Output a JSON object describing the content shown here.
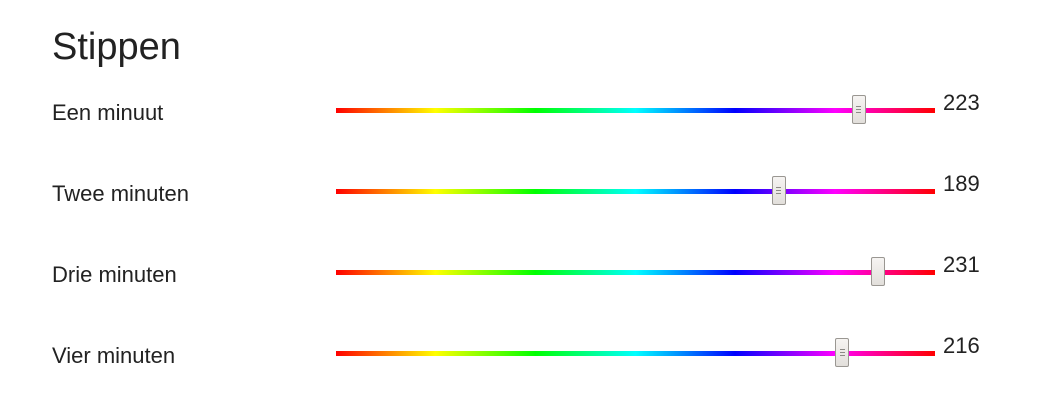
{
  "page": {
    "title": "Stippen"
  },
  "sliders": [
    {
      "label": "Een minuut",
      "value": 223,
      "min": 0,
      "max": 255,
      "thumb_style": "grip"
    },
    {
      "label": "Twee minuten",
      "value": 189,
      "min": 0,
      "max": 255,
      "thumb_style": "grip"
    },
    {
      "label": "Drie minuten",
      "value": 231,
      "min": 0,
      "max": 255,
      "thumb_style": "plain"
    },
    {
      "label": "Vier minuten",
      "value": 216,
      "min": 0,
      "max": 255,
      "thumb_style": "grip"
    }
  ],
  "colors": {
    "gradient": [
      "#ff0000",
      "#ffff00",
      "#00ff00",
      "#00ffff",
      "#0000ff",
      "#ff00ff",
      "#ff0000"
    ],
    "text": "#222222"
  }
}
